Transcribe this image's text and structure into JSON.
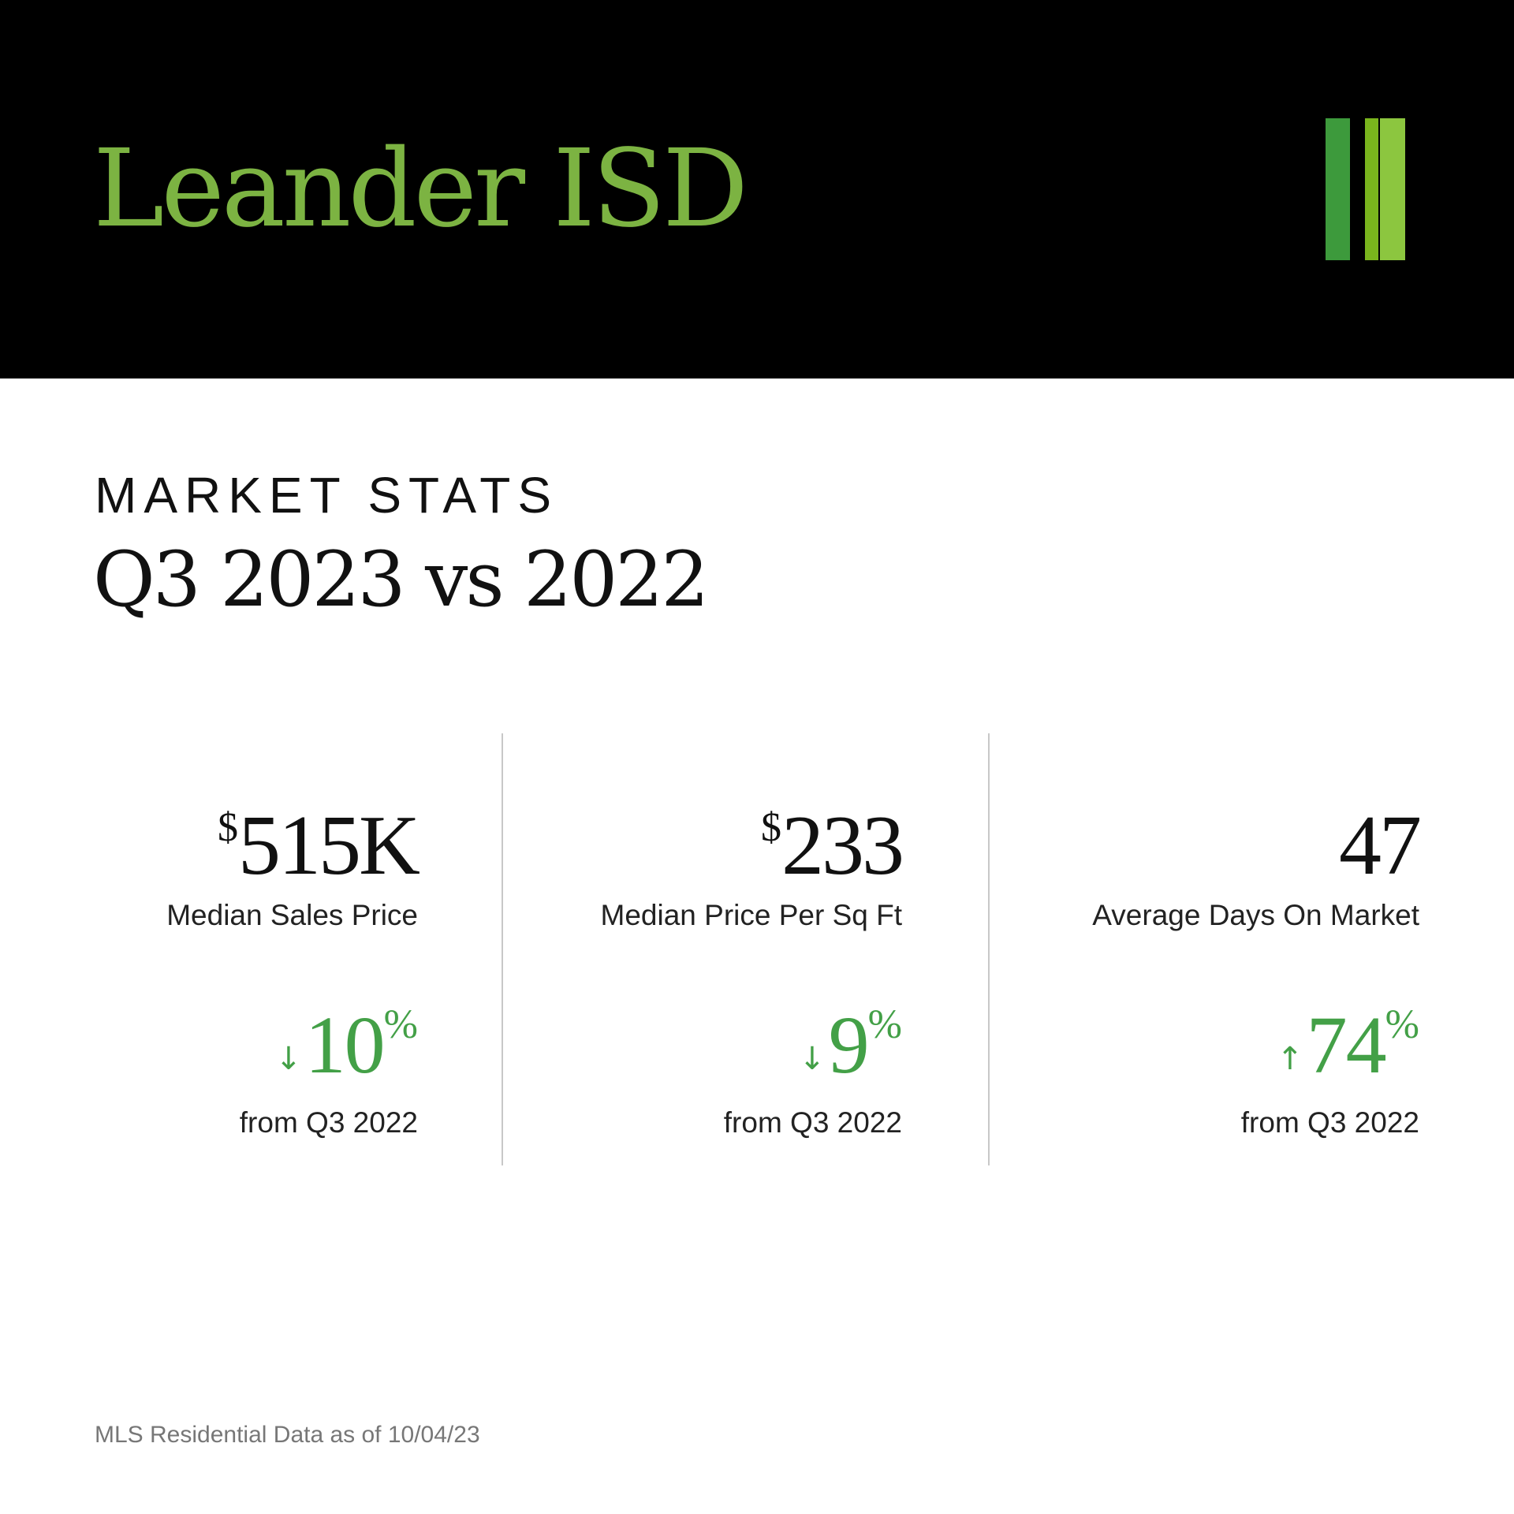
{
  "header": {
    "title": "Leander ISD"
  },
  "logo": {
    "bar_colors": [
      "#3d9a3c",
      "#7ab51d",
      "#8cc63f"
    ]
  },
  "section": {
    "label": "MARKET STATS",
    "title": "Q3 2023 vs 2022"
  },
  "stats": [
    {
      "prefix": "$",
      "value": "515K",
      "label": "Median Sales Price",
      "arrow": "↓",
      "change": "10",
      "change_unit": "%",
      "change_label": "from Q3 2022"
    },
    {
      "prefix": "$",
      "value": "233",
      "label": "Median Price Per Sq Ft",
      "arrow": "↓",
      "change": "9",
      "change_unit": "%",
      "change_label": "from Q3 2022"
    },
    {
      "prefix": "",
      "value": "47",
      "label": "Average Days On Market",
      "arrow": "↑",
      "change": "74",
      "change_unit": "%",
      "change_label": "from Q3 2022"
    }
  ],
  "footer": {
    "note": "MLS Residential Data as of 10/04/23"
  },
  "colors": {
    "accent_green": "#7cb342",
    "change_green": "#43a047",
    "header_bg": "#000000",
    "text": "#111111"
  }
}
